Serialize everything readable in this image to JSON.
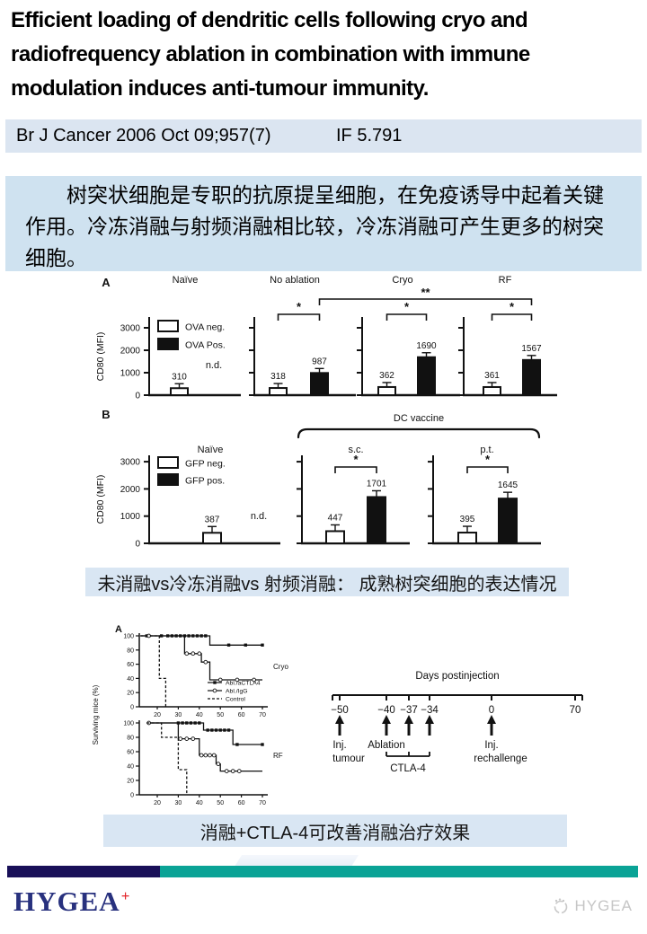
{
  "slide": {
    "title": "Efficient loading of dendritic cells following cryo and radiofrequency ablation in combination with immune modulation induces anti-tumour immunity.",
    "journal": "Br J Cancer 2006 Oct 09;957(7)",
    "impact_factor": "IF 5.791",
    "abstract": "树突状细胞是专职的抗原提呈细胞，在免疫诱导中起着关键作用。冷冻消融与射频消融相比较，冷冻消融可产生更多的树突细胞。",
    "caption_fig1": "未消融vs冷冻消融vs 射频消融： 成熟树突细胞的表达情况",
    "caption_fig2": "消融+CTLA-4可改善消融治疗效果"
  },
  "colors": {
    "journal_blue": "#dbe5f1",
    "abstract_blue": "#cfe2f0",
    "caption_blue": "#d9e6f3",
    "navy_bar": "#191058",
    "teal_bar": "#0aa396",
    "brand_navy": "#28317e",
    "brand_red": "#e3262a",
    "watermark_gray": "#c6c6c6"
  },
  "footer": {
    "brand": "HYGEA",
    "brand_plus": "+",
    "watermark": "HYGEA"
  },
  "chart_data": [
    {
      "id": "cd80_ablation",
      "type": "bar",
      "panel_label": "A",
      "ylabel": "CD80 (MFI)",
      "yticks": [
        0,
        1000,
        2000,
        3000
      ],
      "ylim": [
        0,
        3500
      ],
      "legend": [
        "OVA neg.",
        "OVA Pos."
      ],
      "categories": [
        "Naïve",
        "No ablation",
        "Cryo",
        "RF"
      ],
      "series": [
        {
          "name": "OVA neg.",
          "values": [
            310,
            318,
            362,
            361
          ]
        },
        {
          "name": "OVA Pos.",
          "values": [
            null,
            987,
            1690,
            1567
          ]
        }
      ],
      "not_detected_label": "n.d.",
      "pair_significance": [
        null,
        "*",
        "*",
        "*"
      ],
      "cross_significance": {
        "label": "**",
        "from": "No ablation",
        "to": "RF"
      }
    },
    {
      "id": "cd80_dc_vaccine",
      "type": "bar",
      "panel_label": "B",
      "ylabel": "CD80 (MFI)",
      "yticks": [
        0,
        1000,
        2000,
        3000
      ],
      "ylim": [
        0,
        3500
      ],
      "legend": [
        "GFP neg.",
        "GFP pos."
      ],
      "group_bracket": {
        "label": "DC vaccine",
        "over": [
          "s.c.",
          "p.t."
        ]
      },
      "categories": [
        "Naïve",
        "s.c.",
        "p.t."
      ],
      "series": [
        {
          "name": "GFP neg.",
          "values": [
            387,
            447,
            395
          ]
        },
        {
          "name": "GFP pos.",
          "values": [
            null,
            1701,
            1645
          ]
        }
      ],
      "not_detected_label": "n.d.",
      "pair_significance": [
        null,
        "*",
        "*"
      ]
    },
    {
      "id": "survival",
      "type": "line",
      "panel_label": "A",
      "ylabel": "Surviving mice (%)",
      "xticks": [
        20,
        30,
        40,
        50,
        60,
        70
      ],
      "yticks": [
        0,
        20,
        40,
        60,
        80,
        100
      ],
      "legend": [
        "Abl./aCTLA4",
        "Abl./IgG",
        "Control"
      ],
      "subplots": [
        {
          "label": "Cryo",
          "series": [
            {
              "name": "Abl./aCTLA4",
              "style": "solid",
              "marker": "square",
              "points": [
                [
                  12,
                  100
                ],
                [
                  45,
                  100
                ],
                [
                  45,
                  87
                ],
                [
                  70,
                  87
                ]
              ],
              "markers": [
                [
                  15,
                  100
                ],
                [
                  22,
                  100
                ],
                [
                  25,
                  100
                ],
                [
                  27,
                  100
                ],
                [
                  29,
                  100
                ],
                [
                  31,
                  100
                ],
                [
                  33,
                  100
                ],
                [
                  35,
                  100
                ],
                [
                  37,
                  100
                ],
                [
                  39,
                  100
                ],
                [
                  41,
                  100
                ],
                [
                  43,
                  100
                ],
                [
                  54,
                  87
                ],
                [
                  62,
                  87
                ],
                [
                  70,
                  87
                ]
              ]
            },
            {
              "name": "Abl./IgG",
              "style": "solid",
              "marker": "circle",
              "points": [
                [
                  12,
                  100
                ],
                [
                  33,
                  100
                ],
                [
                  33,
                  75
                ],
                [
                  41,
                  75
                ],
                [
                  41,
                  63
                ],
                [
                  45,
                  63
                ],
                [
                  45,
                  38
                ],
                [
                  70,
                  38
                ]
              ],
              "markers": [
                [
                  16,
                  100
                ],
                [
                  34,
                  75
                ],
                [
                  37,
                  75
                ],
                [
                  40,
                  75
                ],
                [
                  43,
                  63
                ],
                [
                  50,
                  38
                ],
                [
                  58,
                  38
                ],
                [
                  66,
                  38
                ]
              ]
            },
            {
              "name": "Control",
              "style": "dashed",
              "marker": "none",
              "points": [
                [
                  12,
                  100
                ],
                [
                  21,
                  100
                ],
                [
                  21,
                  40
                ],
                [
                  24,
                  40
                ],
                [
                  24,
                  0
                ]
              ],
              "markers": []
            }
          ]
        },
        {
          "label": "RF",
          "series": [
            {
              "name": "Abl./aCTLA4",
              "style": "solid",
              "marker": "square",
              "points": [
                [
                  15,
                  100
                ],
                [
                  42,
                  100
                ],
                [
                  42,
                  90
                ],
                [
                  56,
                  90
                ],
                [
                  56,
                  70
                ],
                [
                  70,
                  70
                ]
              ],
              "markers": [
                [
                  30,
                  100
                ],
                [
                  32,
                  100
                ],
                [
                  34,
                  100
                ],
                [
                  36,
                  100
                ],
                [
                  38,
                  100
                ],
                [
                  40,
                  100
                ],
                [
                  44,
                  90
                ],
                [
                  46,
                  90
                ],
                [
                  48,
                  90
                ],
                [
                  50,
                  90
                ],
                [
                  52,
                  90
                ],
                [
                  54,
                  90
                ],
                [
                  58,
                  70
                ],
                [
                  70,
                  70
                ]
              ]
            },
            {
              "name": "Abl./IgG",
              "style": "solid",
              "marker": "circle",
              "points": [
                [
                  15,
                  100
                ],
                [
                  30,
                  100
                ],
                [
                  30,
                  78
                ],
                [
                  40,
                  78
                ],
                [
                  40,
                  55
                ],
                [
                  48,
                  55
                ],
                [
                  48,
                  43
                ],
                [
                  50,
                  43
                ],
                [
                  50,
                  33
                ],
                [
                  70,
                  33
                ]
              ],
              "markers": [
                [
                  16,
                  100
                ],
                [
                  31,
                  78
                ],
                [
                  34,
                  78
                ],
                [
                  37,
                  78
                ],
                [
                  41,
                  55
                ],
                [
                  43,
                  55
                ],
                [
                  45,
                  55
                ],
                [
                  47,
                  55
                ],
                [
                  49,
                  43
                ],
                [
                  53,
                  33
                ],
                [
                  56,
                  33
                ],
                [
                  59,
                  33
                ]
              ]
            },
            {
              "name": "Control",
              "style": "dashed",
              "marker": "none",
              "points": [
                [
                  15,
                  100
                ],
                [
                  22,
                  100
                ],
                [
                  22,
                  80
                ],
                [
                  30,
                  80
                ],
                [
                  30,
                  35
                ],
                [
                  34,
                  35
                ],
                [
                  34,
                  0
                ]
              ],
              "markers": []
            }
          ]
        }
      ]
    },
    {
      "id": "timeline",
      "type": "timeline",
      "title": "Days postinjection",
      "ticks": [
        {
          "value": -50,
          "label": "−50"
        },
        {
          "value": -40,
          "label": "−40"
        },
        {
          "value": -37,
          "label": "−37"
        },
        {
          "value": -34,
          "label": "−34"
        },
        {
          "value": 0,
          "label": "0"
        },
        {
          "value": 70,
          "label": "70"
        }
      ],
      "arrows": [
        -50,
        -40,
        -37,
        -34,
        0
      ],
      "events": [
        {
          "at": -50,
          "label": "Inj.\ntumour"
        },
        {
          "at": -40,
          "label": "Ablation"
        },
        {
          "at": 0,
          "label": "Inj.\nrechallenge"
        }
      ],
      "bracket": {
        "label": "CTLA-4",
        "from": -40,
        "to": -34
      }
    }
  ]
}
